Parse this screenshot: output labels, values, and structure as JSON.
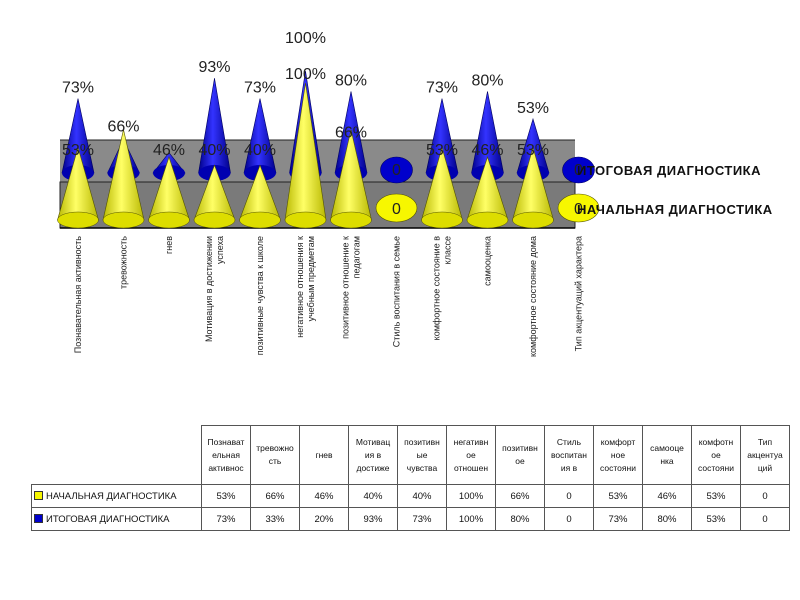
{
  "chart_data": {
    "type": "bar",
    "style": "3d-cone",
    "categories": [
      "Познавательная активность",
      "тревожность",
      "гнев",
      "Мотивация в достижении успеха",
      "позитивные чувства к школе",
      "негативное отношения к учебным предметам",
      "позитивное отношение к педагогам",
      "Стиль воспитания в семье",
      "комфортное состояние в классе",
      "самооценка",
      "комфортное состояние дома",
      "Тип акцентуаций характера"
    ],
    "series": [
      {
        "name": "НАЧАЛЬНАЯ ДИАГНОСТИКА",
        "color": "#f7f700",
        "values": [
          53,
          66,
          46,
          40,
          40,
          100,
          66,
          0,
          53,
          46,
          53,
          0
        ]
      },
      {
        "name": "ИТОГОВАЯ ДИАГНОСТИКА",
        "color": "#0000cc",
        "values": [
          73,
          33,
          20,
          93,
          73,
          100,
          80,
          0,
          73,
          80,
          53,
          0
        ]
      }
    ],
    "ylim": [
      0,
      100
    ],
    "value_labels": {
      "front": [
        "53%",
        "66%",
        "46%",
        "40%",
        "40%",
        "100%",
        "66%",
        "0",
        "53%",
        "46%",
        "53%",
        "0"
      ],
      "back": [
        "73%",
        "",
        "",
        "93%",
        "73%",
        "100%",
        "80%",
        "0",
        "73%",
        "80%",
        "53%",
        "0"
      ]
    },
    "table": {
      "headers": [
        [
          "Познават",
          "ельная",
          "активнос"
        ],
        [
          "тревожно",
          "сть"
        ],
        [
          "гнев"
        ],
        [
          "Мотивац",
          "ия в",
          "достиже"
        ],
        [
          "позитивн",
          "ые",
          "чувства"
        ],
        [
          "негативн",
          "ое",
          "отношен"
        ],
        [
          "позитивн",
          "ое"
        ],
        [
          "Стиль",
          "воспитан",
          "ия в"
        ],
        [
          "комфорт",
          "ное",
          "состояни"
        ],
        [
          "самооце",
          "нка"
        ],
        [
          "комфотн",
          "ое",
          "состояни"
        ],
        [
          "Тип",
          "акцентуа",
          "ций"
        ]
      ],
      "rows": [
        {
          "label": "НАЧАЛЬНАЯ ДИАГНОСТИКА",
          "cells": [
            "53%",
            "66%",
            "46%",
            "40%",
            "40%",
            "100%",
            "66%",
            "0",
            "53%",
            "46%",
            "53%",
            "0"
          ]
        },
        {
          "label": "ИТОГОВАЯ ДИАГНОСТИКА",
          "cells": [
            "73%",
            "33%",
            "20%",
            "93%",
            "73%",
            "100%",
            "80%",
            "0",
            "73%",
            "80%",
            "53%",
            "0"
          ]
        }
      ]
    }
  }
}
